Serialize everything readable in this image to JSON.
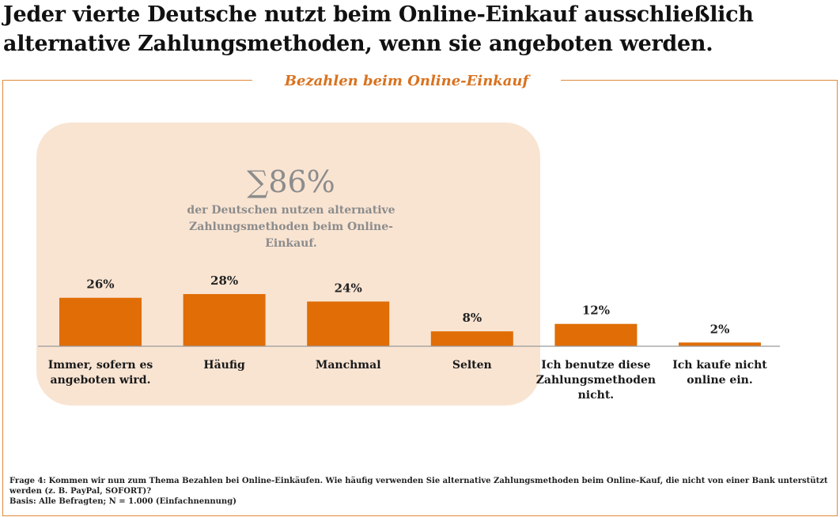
{
  "headline": "Jeder vierte Deutsche nutzt beim Online-Einkauf ausschließlich alternative Zahlungsmethoden, wenn sie angeboten werden.",
  "colors": {
    "bar": "#e06d06",
    "highlight_box": "#f9e4d2",
    "accent_text": "#d9721f",
    "frame": "#e08a3c",
    "summary_text": "#8c8c8c"
  },
  "chart_data": {
    "type": "bar",
    "title": "Bezahlen beim Online-Einkauf",
    "categories": [
      [
        "Immer, sofern es",
        "angeboten wird."
      ],
      [
        "Häufig"
      ],
      [
        "Manchmal"
      ],
      [
        "Selten"
      ],
      [
        "Ich benutze diese",
        "Zahlungsmethoden",
        "nicht."
      ],
      [
        "Ich kaufe nicht",
        "online ein."
      ]
    ],
    "values": [
      26,
      28,
      24,
      8,
      12,
      2
    ],
    "value_labels": [
      "26%",
      "28%",
      "24%",
      "8%",
      "12%",
      "2%"
    ],
    "ylim": [
      0,
      28
    ],
    "grid": false,
    "legend": "none",
    "highlight": {
      "covers_categories": [
        0,
        1,
        2,
        3
      ],
      "value": "∑86%",
      "text": [
        "der Deutschen nutzen alternative",
        "Zahlungsmethoden beim Online-",
        "Einkauf."
      ]
    }
  },
  "footnote": {
    "question": "Frage 4: Kommen wir nun zum Thema Bezahlen bei Online-Einkäufen. Wie häufig verwenden Sie alternative Zahlungsmethoden beim Online-Kauf, die nicht von einer Bank unterstützt werden (z. B. PayPal, SOFORT)?",
    "basis": "Basis: Alle Befragten; N = 1.000 (Einfachnennung)"
  }
}
